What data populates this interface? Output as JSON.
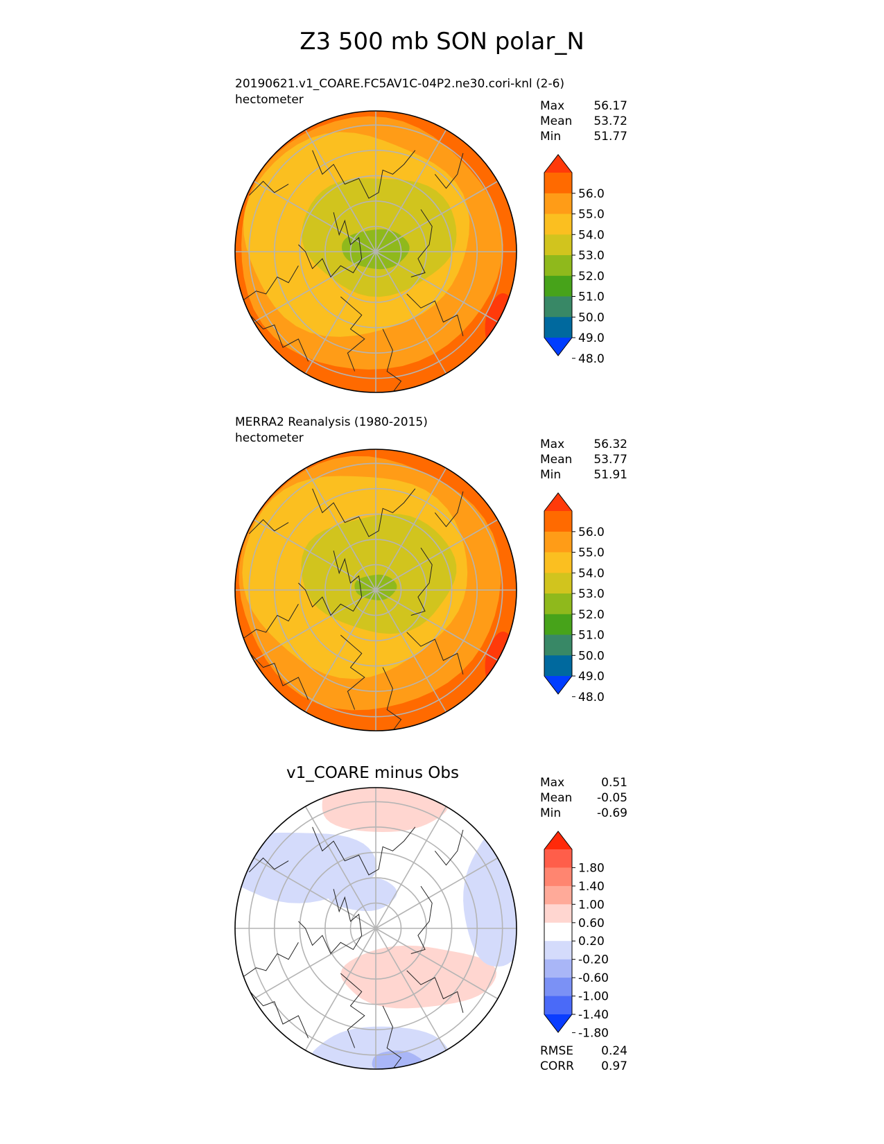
{
  "title": "Z3 500 mb SON polar_N",
  "chart_data": [
    {
      "type": "heatmap",
      "projection": "north polar stereographic",
      "title_line1": "20190621.v1_COARE.FC5AV1C-04P2.ne30.cori-knl (2-6)",
      "title_line2": "hectometer",
      "stats": [
        {
          "label": "Max",
          "value": "56.17"
        },
        {
          "label": "Mean",
          "value": "53.72"
        },
        {
          "label": "Min",
          "value": "51.77"
        }
      ],
      "colorbar_ticks": [
        "56.0",
        "55.0",
        "54.0",
        "53.0",
        "52.0",
        "51.0",
        "50.0",
        "49.0",
        "48.0"
      ],
      "colorbar_colors": [
        "#ff3a0a",
        "#ff6a00",
        "#ff9c17",
        "#fbbf20",
        "#d1c41e",
        "#8fb91c",
        "#47a31a",
        "#388866",
        "#00699e",
        "#003dff"
      ],
      "field_levels": [
        {
          "level": 56.0,
          "color": "#ff3a0a"
        },
        {
          "level": 55.0,
          "color": "#ff6a00"
        },
        {
          "level": 54.0,
          "color": "#ff9c17"
        },
        {
          "level": 53.0,
          "color": "#fbbf20"
        },
        {
          "level": 52.0,
          "color": "#d1c41e"
        },
        {
          "level": 51.0,
          "color": "#8fb91c"
        }
      ]
    },
    {
      "type": "heatmap",
      "projection": "north polar stereographic",
      "title_line1": "MERRA2 Reanalysis (1980-2015)",
      "title_line2": "hectometer",
      "stats": [
        {
          "label": "Max",
          "value": "56.32"
        },
        {
          "label": "Mean",
          "value": "53.77"
        },
        {
          "label": "Min",
          "value": "51.91"
        }
      ],
      "colorbar_ticks": [
        "56.0",
        "55.0",
        "54.0",
        "53.0",
        "52.0",
        "51.0",
        "50.0",
        "49.0",
        "48.0"
      ],
      "colorbar_colors": [
        "#ff3a0a",
        "#ff6a00",
        "#ff9c17",
        "#fbbf20",
        "#d1c41e",
        "#8fb91c",
        "#47a31a",
        "#388866",
        "#00699e",
        "#003dff"
      ]
    },
    {
      "type": "heatmap",
      "projection": "north polar stereographic",
      "title": "v1_COARE minus Obs",
      "stats": [
        {
          "label": "Max",
          "value": "0.51"
        },
        {
          "label": "Mean",
          "value": "-0.05"
        },
        {
          "label": "Min",
          "value": "-0.69"
        }
      ],
      "colorbar_ticks": [
        "1.80",
        "1.40",
        "1.00",
        "0.60",
        "0.20",
        "-0.20",
        "-0.60",
        "-1.00",
        "-1.40",
        "-1.80"
      ],
      "colorbar_colors": [
        "#ff2a0a",
        "#ff5e4a",
        "#ff8570",
        "#ffaa99",
        "#ffd6d0",
        "#ffffff",
        "#d4dbfb",
        "#a9b6f7",
        "#7b91f5",
        "#4a6af8",
        "#0a3dff"
      ],
      "metrics": [
        {
          "label": "RMSE",
          "value": "0.24"
        },
        {
          "label": "CORR",
          "value": "0.97"
        }
      ]
    }
  ]
}
